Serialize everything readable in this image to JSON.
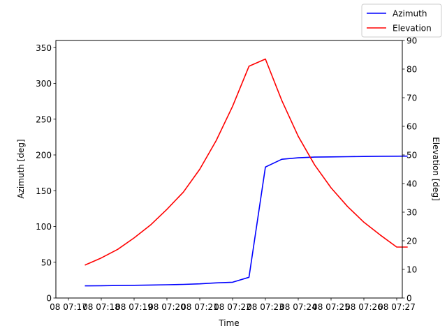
{
  "chart_data": {
    "type": "line",
    "title": "",
    "xlabel": "Time",
    "ylabel_left": "Azimuth [deg]",
    "ylabel_right": "Elevation [deg]",
    "x_tick_labels": [
      "08 07:17",
      "08 07:18",
      "08 07:19",
      "08 07:20",
      "08 07:21",
      "08 07:22",
      "08 07:23",
      "08 07:24",
      "08 07:25",
      "08 07:26",
      "08 07:27"
    ],
    "xlim": [
      "08 07:17",
      "08 07:27"
    ],
    "ylim_left": [
      0,
      360
    ],
    "ylim_right": [
      0,
      90
    ],
    "yticks_left": [
      0,
      50,
      100,
      150,
      200,
      250,
      300,
      350
    ],
    "yticks_right": [
      0,
      10,
      20,
      30,
      40,
      50,
      60,
      70,
      80,
      90
    ],
    "grid": false,
    "legend_position": "top-right",
    "series": [
      {
        "name": "Azimuth",
        "axis": "left",
        "color": "#0000ff",
        "x": [
          "07:17:30",
          "07:18:00",
          "07:18:30",
          "07:19:00",
          "07:19:30",
          "07:20:00",
          "07:20:30",
          "07:21:00",
          "07:21:30",
          "07:22:00",
          "07:22:30",
          "07:23:00",
          "07:23:30",
          "07:24:00",
          "07:24:30",
          "07:25:00",
          "07:25:30",
          "07:26:00",
          "07:26:30",
          "07:27:00",
          "07:27:20"
        ],
        "values": [
          17,
          17.2,
          17.5,
          17.8,
          18.1,
          18.5,
          19,
          19.8,
          21.2,
          22,
          29,
          183,
          194,
          196,
          197,
          197.3,
          197.6,
          197.9,
          198.1,
          198.2,
          198.3
        ]
      },
      {
        "name": "Elevation",
        "axis": "right",
        "color": "#ff0000",
        "x": [
          "07:17:30",
          "07:18:00",
          "07:18:30",
          "07:19:00",
          "07:19:30",
          "07:20:00",
          "07:20:30",
          "07:21:00",
          "07:21:30",
          "07:22:00",
          "07:22:30",
          "07:23:00",
          "07:23:30",
          "07:24:00",
          "07:24:30",
          "07:25:00",
          "07:25:30",
          "07:26:00",
          "07:26:30",
          "07:27:00",
          "07:27:20"
        ],
        "values": [
          11.5,
          14,
          17,
          21,
          25.5,
          31,
          37,
          45,
          55,
          67,
          81,
          83.5,
          69,
          56.5,
          46.5,
          38.5,
          32,
          26.5,
          22,
          17.8,
          17.8
        ]
      }
    ]
  }
}
